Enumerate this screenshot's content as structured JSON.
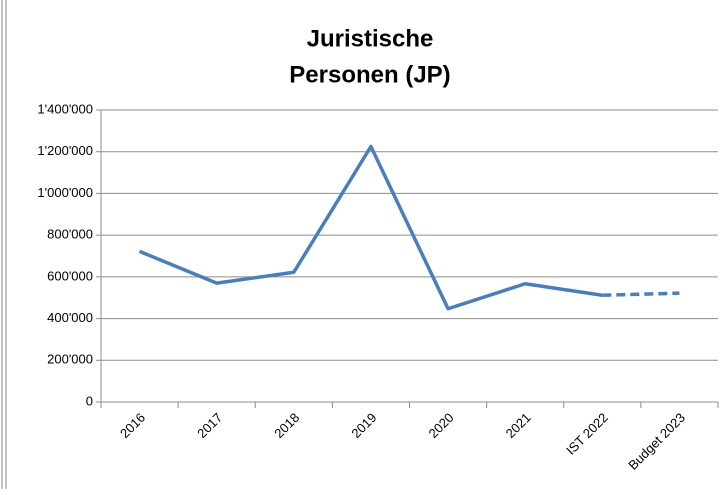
{
  "chart_data": {
    "type": "line",
    "title": [
      "Juristische",
      "Personen (JP)"
    ],
    "categories": [
      "2016",
      "2017",
      "2018",
      "2019",
      "2020",
      "2021",
      "IST 2022",
      "Budget 2023"
    ],
    "values": [
      722000,
      570000,
      622000,
      1225000,
      447000,
      567000,
      512000,
      522000
    ],
    "color": "#4a7ebb",
    "dashed_from": 6,
    "ylim": [
      0,
      1400000
    ],
    "yticks": [
      0,
      {
        "value": 200000,
        "label": "200'000"
      },
      {
        "value": 400000,
        "label": "400'000"
      },
      {
        "value": 600000,
        "label": "600'000"
      },
      {
        "value": 800000,
        "label": "800'000"
      },
      {
        "value": 1000000,
        "label": "1'000'000"
      },
      {
        "value": 1200000,
        "label": "1'200'000"
      },
      {
        "value": 1400000,
        "label": "1'400'000"
      }
    ],
    "grid": true
  }
}
